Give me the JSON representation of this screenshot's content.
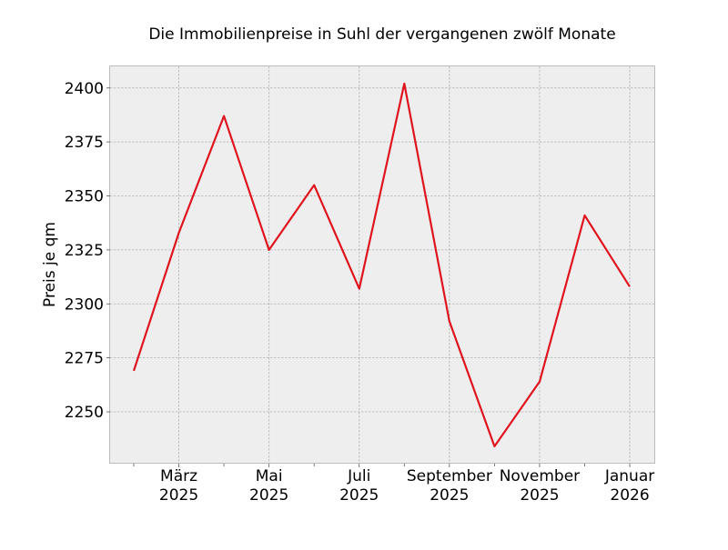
{
  "chart_data": {
    "type": "line",
    "title": "Die Immobilienpreise in Suhl der vergangenen zwölf Monate",
    "xlabel": "",
    "ylabel": "Preis je qm",
    "x": [
      "2025-02",
      "2025-03",
      "2025-04",
      "2025-05",
      "2025-06",
      "2025-07",
      "2025-08",
      "2025-09",
      "2025-10",
      "2025-11",
      "2025-12",
      "2026-01"
    ],
    "series": [
      {
        "values": [
          2269,
          2333,
          2387,
          2325,
          2355,
          2307,
          2402,
          2292,
          2234,
          2264,
          2341,
          2308
        ],
        "color": "#e0141e"
      }
    ],
    "ylim": [
      2226,
      2410
    ],
    "yticks": [
      2250,
      2275,
      2300,
      2325,
      2350,
      2375,
      2400
    ],
    "xticks_major": [
      {
        "x": "2025-03",
        "label_top": "März",
        "label_bottom": "2025"
      },
      {
        "x": "2025-05",
        "label_top": "Mai",
        "label_bottom": "2025"
      },
      {
        "x": "2025-07",
        "label_top": "Juli",
        "label_bottom": "2025"
      },
      {
        "x": "2025-09",
        "label_top": "September",
        "label_bottom": "2025"
      },
      {
        "x": "2025-11",
        "label_top": "November",
        "label_bottom": "2025"
      },
      {
        "x": "2026-01",
        "label_top": "Januar",
        "label_bottom": "2026"
      }
    ],
    "grid": true,
    "background_color": "#eeeeee"
  }
}
